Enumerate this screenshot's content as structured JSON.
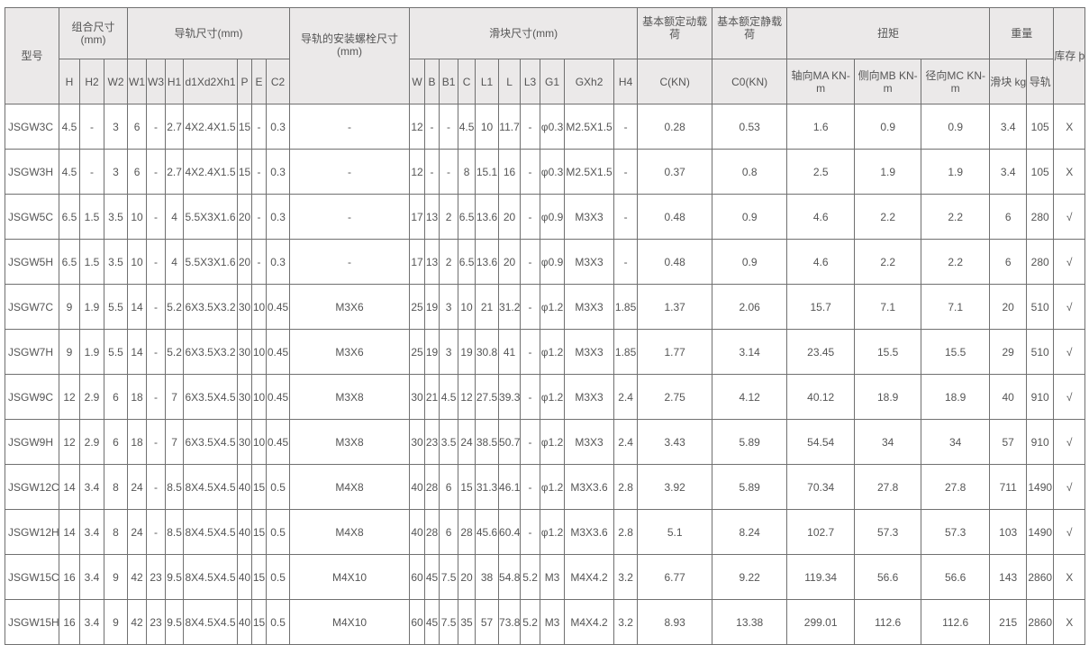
{
  "header": {
    "model": "型号",
    "group_combined": "组合尺寸 (mm)",
    "group_rail": "导轨尺寸(mm)",
    "group_bolt": "导轨的安装螺栓尺寸 (mm)",
    "group_block": "滑块尺寸(mm)",
    "group_dynamic": "基本额定动载荷",
    "group_static": "基本额定静载荷",
    "group_torque": "扭矩",
    "group_weight": "重量",
    "group_stock": "库存 þ",
    "combined_cols": [
      "H",
      "H2",
      "W2"
    ],
    "rail_cols": [
      "W1",
      "W3",
      "H1",
      "d1Xd2Xh1",
      "P",
      "E",
      "C2"
    ],
    "block_cols": [
      "W",
      "B",
      "B1",
      "C",
      "L1",
      "L",
      "L3",
      "G1",
      "GXh2",
      "H4"
    ],
    "dynamic_col": "C(KN)",
    "static_col": "C0(KN)",
    "torque_cols": [
      "轴向MA KN-m",
      "侧向MB KN-m",
      "径向MC KN-m"
    ],
    "weight_cols": [
      "滑块 kg",
      "导轨"
    ]
  },
  "rows": [
    [
      "JSGW3C",
      "4.5",
      "-",
      "3",
      "6",
      "-",
      "2.7",
      "4X2.4X1.5",
      "15",
      "-",
      "0.3",
      "-",
      "12",
      "-",
      "-",
      "4.5",
      "10",
      "11.7",
      "-",
      "φ0.3",
      "M2.5X1.5",
      "-",
      "0.28",
      "0.53",
      "1.6",
      "0.9",
      "0.9",
      "3.4",
      "105",
      "X"
    ],
    [
      "JSGW3H",
      "4.5",
      "-",
      "3",
      "6",
      "-",
      "2.7",
      "4X2.4X1.5",
      "15",
      "-",
      "0.3",
      "-",
      "12",
      "-",
      "-",
      "8",
      "15.1",
      "16",
      "-",
      "φ0.3",
      "M2.5X1.5",
      "-",
      "0.37",
      "0.8",
      "2.5",
      "1.9",
      "1.9",
      "3.4",
      "105",
      "X"
    ],
    [
      "JSGW5C",
      "6.5",
      "1.5",
      "3.5",
      "10",
      "-",
      "4",
      "5.5X3X1.6",
      "20",
      "-",
      "0.3",
      "-",
      "17",
      "13",
      "2",
      "6.5",
      "13.6",
      "20",
      "-",
      "φ0.9",
      "M3X3",
      "-",
      "0.48",
      "0.9",
      "4.6",
      "2.2",
      "2.2",
      "6",
      "280",
      "√"
    ],
    [
      "JSGW5H",
      "6.5",
      "1.5",
      "3.5",
      "10",
      "-",
      "4",
      "5.5X3X1.6",
      "20",
      "-",
      "0.3",
      "-",
      "17",
      "13",
      "2",
      "6.5",
      "13.6",
      "20",
      "-",
      "φ0.9",
      "M3X3",
      "-",
      "0.48",
      "0.9",
      "4.6",
      "2.2",
      "2.2",
      "6",
      "280",
      "√"
    ],
    [
      "JSGW7C",
      "9",
      "1.9",
      "5.5",
      "14",
      "-",
      "5.2",
      "6X3.5X3.2",
      "30",
      "10",
      "0.45",
      "M3X6",
      "25",
      "19",
      "3",
      "10",
      "21",
      "31.2",
      "-",
      "φ1.2",
      "M3X3",
      "1.85",
      "1.37",
      "2.06",
      "15.7",
      "7.1",
      "7.1",
      "20",
      "510",
      "√"
    ],
    [
      "JSGW7H",
      "9",
      "1.9",
      "5.5",
      "14",
      "-",
      "5.2",
      "6X3.5X3.2",
      "30",
      "10",
      "0.45",
      "M3X6",
      "25",
      "19",
      "3",
      "19",
      "30.8",
      "41",
      "-",
      "φ1.2",
      "M3X3",
      "1.85",
      "1.77",
      "3.14",
      "23.45",
      "15.5",
      "15.5",
      "29",
      "510",
      "√"
    ],
    [
      "JSGW9C",
      "12",
      "2.9",
      "6",
      "18",
      "-",
      "7",
      "6X3.5X4.5",
      "30",
      "10",
      "0.45",
      "M3X8",
      "30",
      "21",
      "4.5",
      "12",
      "27.5",
      "39.3",
      "-",
      "φ1.2",
      "M3X3",
      "2.4",
      "2.75",
      "4.12",
      "40.12",
      "18.9",
      "18.9",
      "40",
      "910",
      "√"
    ],
    [
      "JSGW9H",
      "12",
      "2.9",
      "6",
      "18",
      "-",
      "7",
      "6X3.5X4.5",
      "30",
      "10",
      "0.45",
      "M3X8",
      "30",
      "23",
      "3.5",
      "24",
      "38.5",
      "50.7",
      "-",
      "φ1.2",
      "M3X3",
      "2.4",
      "3.43",
      "5.89",
      "54.54",
      "34",
      "34",
      "57",
      "910",
      "√"
    ],
    [
      "JSGW12C",
      "14",
      "3.4",
      "8",
      "24",
      "-",
      "8.5",
      "8X4.5X4.5",
      "40",
      "15",
      "0.5",
      "M4X8",
      "40",
      "28",
      "6",
      "15",
      "31.3",
      "46.1",
      "-",
      "φ1.2",
      "M3X3.6",
      "2.8",
      "3.92",
      "5.89",
      "70.34",
      "27.8",
      "27.8",
      "711",
      "1490",
      "√"
    ],
    [
      "JSGW12H",
      "14",
      "3.4",
      "8",
      "24",
      "-",
      "8.5",
      "8X4.5X4.5",
      "40",
      "15",
      "0.5",
      "M4X8",
      "40",
      "28",
      "6",
      "28",
      "45.6",
      "60.4",
      "-",
      "φ1.2",
      "M3X3.6",
      "2.8",
      "5.1",
      "8.24",
      "102.7",
      "57.3",
      "57.3",
      "103",
      "1490",
      "√"
    ],
    [
      "JSGW15C",
      "16",
      "3.4",
      "9",
      "42",
      "23",
      "9.5",
      "8X4.5X4.5",
      "40",
      "15",
      "0.5",
      "M4X10",
      "60",
      "45",
      "7.5",
      "20",
      "38",
      "54.8",
      "5.2",
      "M3",
      "M4X4.2",
      "3.2",
      "6.77",
      "9.22",
      "119.34",
      "56.6",
      "56.6",
      "143",
      "2860",
      "X"
    ],
    [
      "JSGW15H",
      "16",
      "3.4",
      "9",
      "42",
      "23",
      "9.5",
      "8X4.5X4.5",
      "40",
      "15",
      "0.5",
      "M4X10",
      "60",
      "45",
      "7.5",
      "35",
      "57",
      "73.8",
      "5.2",
      "M3",
      "M4X4.2",
      "3.2",
      "8.93",
      "13.38",
      "299.01",
      "112.6",
      "112.6",
      "215",
      "2860",
      "X"
    ]
  ]
}
